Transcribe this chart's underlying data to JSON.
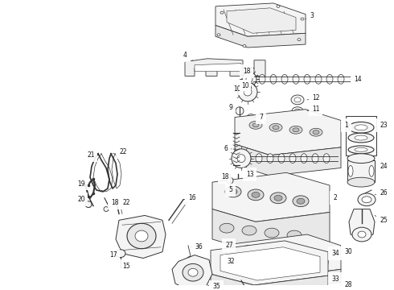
{
  "bg_color": "#ffffff",
  "line_color": "#333333",
  "label_color": "#111111",
  "label_fontsize": 5.5,
  "fig_width": 4.9,
  "fig_height": 3.6,
  "dpi": 100
}
